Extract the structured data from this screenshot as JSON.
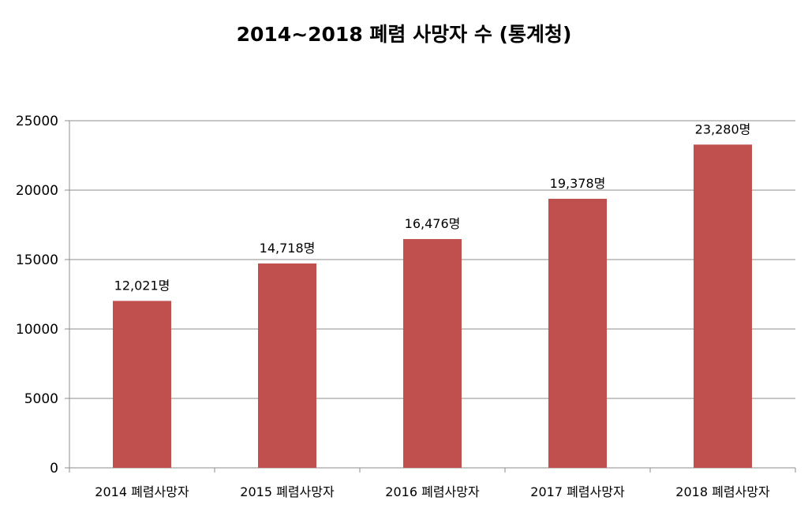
{
  "chart_data": {
    "type": "bar",
    "title": "2014~2018 폐렴 사망자 수 (통계청)",
    "categories": [
      "2014 폐렴사망자",
      "2015 폐렴사망자",
      "2016 폐렴사망자",
      "2017 폐렴사망자",
      "2018 폐렴사망자"
    ],
    "values": [
      12021,
      14718,
      16476,
      19378,
      23280
    ],
    "data_labels": [
      "12,021명",
      "14,718명",
      "16,476명",
      "19,378명",
      "23,280명"
    ],
    "ylim": [
      0,
      25000
    ],
    "yticks": [
      "0",
      "5000",
      "10000",
      "15000",
      "20000",
      "25000"
    ],
    "ytick_values": [
      0,
      5000,
      10000,
      15000,
      20000,
      25000
    ],
    "xlabel": "",
    "ylabel": "",
    "grid": true,
    "bar_color": "#c0504d"
  }
}
